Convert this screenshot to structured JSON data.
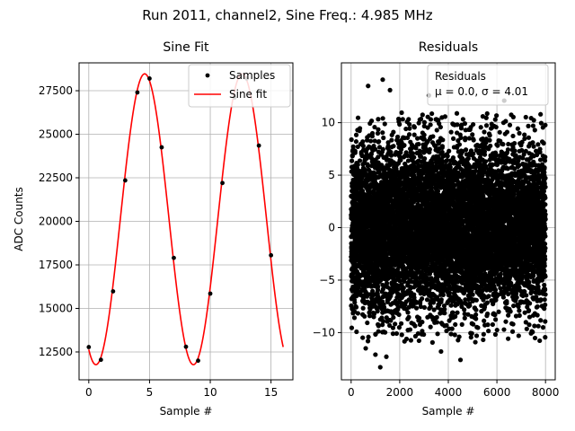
{
  "suptitle": "Run 2011, channel2, Sine Freq.: 4.985 MHz",
  "chart_data": [
    {
      "type": "line",
      "title": "Sine Fit",
      "xlabel": "Sample #",
      "ylabel": "ADC Counts",
      "xlim": [
        -0.8,
        16.8
      ],
      "ylim": [
        10900,
        29100
      ],
      "xticks": [
        0,
        5,
        10,
        15
      ],
      "yticks": [
        12500,
        15000,
        17500,
        20000,
        22500,
        25000,
        27500
      ],
      "ytick_labels": [
        "12500",
        "15000",
        "17500",
        "20000",
        "22500",
        "25000",
        "27500"
      ],
      "grid": true,
      "legend": {
        "position": "top-right",
        "entries": [
          "Samples",
          "Sine fit"
        ]
      },
      "series": [
        {
          "name": "Samples",
          "kind": "scatter",
          "color": "#000000",
          "x": [
            0,
            1,
            2,
            3,
            4,
            5,
            6,
            7,
            8,
            9,
            10,
            11,
            12,
            13,
            14,
            15
          ],
          "y": [
            12780,
            12050,
            15980,
            22350,
            27400,
            28200,
            24250,
            17900,
            12800,
            12000,
            15850,
            22200,
            27100,
            28200,
            24350,
            18050
          ]
        },
        {
          "name": "Sine fit",
          "kind": "line",
          "color": "#ff0000",
          "model": {
            "offset": 20120,
            "amplitude": 8350,
            "period": 8.024,
            "peak_x": 4.6,
            "x_range": [
              0,
              16
            ]
          }
        }
      ]
    },
    {
      "type": "scatter",
      "title": "Residuals",
      "xlabel": "Sample #",
      "xlim": [
        -400,
        8400
      ],
      "ylim": [
        -14.5,
        15.7
      ],
      "xticks": [
        0,
        2000,
        4000,
        6000,
        8000
      ],
      "yticks": [
        -10,
        -5,
        0,
        5,
        10
      ],
      "ytick_labels": [
        "−10",
        "−5",
        "0",
        "5",
        "10"
      ],
      "grid": true,
      "legend": {
        "position": "top-right",
        "entries": [
          "Residuals",
          "μ = 0.0, σ = 4.01"
        ]
      },
      "series": [
        {
          "name": "Residuals",
          "color": "#000000",
          "n_points": 8000,
          "mean": 0.0,
          "std": 4.01,
          "extremes": [
            [
              1300,
              14.1
            ],
            [
              700,
              13.5
            ],
            [
              1600,
              13.1
            ],
            [
              1200,
              -13.3
            ],
            [
              4500,
              -12.6
            ],
            [
              1000,
              -12.1
            ],
            [
              1450,
              -12.3
            ],
            [
              3700,
              -11.8
            ],
            [
              600,
              -11.5
            ],
            [
              6300,
              12.1
            ],
            [
              3200,
              12.6
            ]
          ]
        }
      ]
    }
  ]
}
